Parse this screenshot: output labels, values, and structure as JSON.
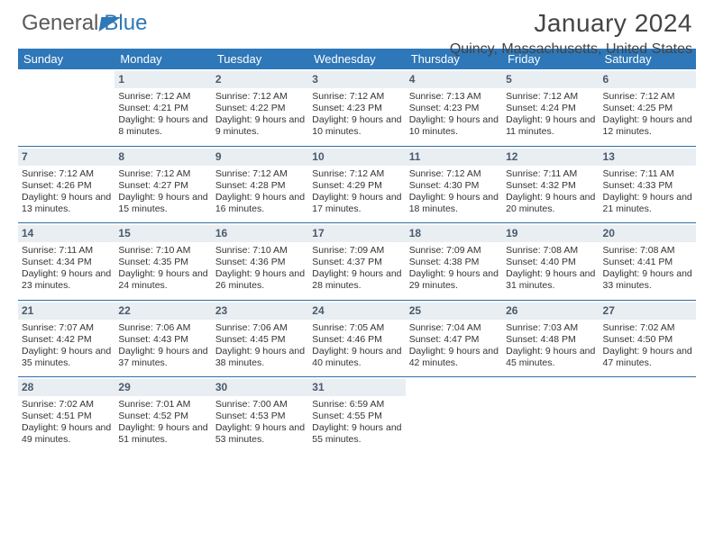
{
  "brand": {
    "part1": "General",
    "part2": "Blue"
  },
  "title": {
    "month": "January 2024",
    "location": "Quincy, Massachusetts, United States"
  },
  "dayNames": [
    "Sunday",
    "Monday",
    "Tuesday",
    "Wednesday",
    "Thursday",
    "Friday",
    "Saturday"
  ],
  "colors": {
    "headerBar": "#2e77b8",
    "rowRule": "#2e6ea8",
    "dayNumBg": "#e9eef3"
  },
  "weeks": [
    [
      null,
      {
        "n": "1",
        "sunrise": "7:12 AM",
        "sunset": "4:21 PM",
        "daylight": "9 hours and 8 minutes."
      },
      {
        "n": "2",
        "sunrise": "7:12 AM",
        "sunset": "4:22 PM",
        "daylight": "9 hours and 9 minutes."
      },
      {
        "n": "3",
        "sunrise": "7:12 AM",
        "sunset": "4:23 PM",
        "daylight": "9 hours and 10 minutes."
      },
      {
        "n": "4",
        "sunrise": "7:13 AM",
        "sunset": "4:23 PM",
        "daylight": "9 hours and 10 minutes."
      },
      {
        "n": "5",
        "sunrise": "7:12 AM",
        "sunset": "4:24 PM",
        "daylight": "9 hours and 11 minutes."
      },
      {
        "n": "6",
        "sunrise": "7:12 AM",
        "sunset": "4:25 PM",
        "daylight": "9 hours and 12 minutes."
      }
    ],
    [
      {
        "n": "7",
        "sunrise": "7:12 AM",
        "sunset": "4:26 PM",
        "daylight": "9 hours and 13 minutes."
      },
      {
        "n": "8",
        "sunrise": "7:12 AM",
        "sunset": "4:27 PM",
        "daylight": "9 hours and 15 minutes."
      },
      {
        "n": "9",
        "sunrise": "7:12 AM",
        "sunset": "4:28 PM",
        "daylight": "9 hours and 16 minutes."
      },
      {
        "n": "10",
        "sunrise": "7:12 AM",
        "sunset": "4:29 PM",
        "daylight": "9 hours and 17 minutes."
      },
      {
        "n": "11",
        "sunrise": "7:12 AM",
        "sunset": "4:30 PM",
        "daylight": "9 hours and 18 minutes."
      },
      {
        "n": "12",
        "sunrise": "7:11 AM",
        "sunset": "4:32 PM",
        "daylight": "9 hours and 20 minutes."
      },
      {
        "n": "13",
        "sunrise": "7:11 AM",
        "sunset": "4:33 PM",
        "daylight": "9 hours and 21 minutes."
      }
    ],
    [
      {
        "n": "14",
        "sunrise": "7:11 AM",
        "sunset": "4:34 PM",
        "daylight": "9 hours and 23 minutes."
      },
      {
        "n": "15",
        "sunrise": "7:10 AM",
        "sunset": "4:35 PM",
        "daylight": "9 hours and 24 minutes."
      },
      {
        "n": "16",
        "sunrise": "7:10 AM",
        "sunset": "4:36 PM",
        "daylight": "9 hours and 26 minutes."
      },
      {
        "n": "17",
        "sunrise": "7:09 AM",
        "sunset": "4:37 PM",
        "daylight": "9 hours and 28 minutes."
      },
      {
        "n": "18",
        "sunrise": "7:09 AM",
        "sunset": "4:38 PM",
        "daylight": "9 hours and 29 minutes."
      },
      {
        "n": "19",
        "sunrise": "7:08 AM",
        "sunset": "4:40 PM",
        "daylight": "9 hours and 31 minutes."
      },
      {
        "n": "20",
        "sunrise": "7:08 AM",
        "sunset": "4:41 PM",
        "daylight": "9 hours and 33 minutes."
      }
    ],
    [
      {
        "n": "21",
        "sunrise": "7:07 AM",
        "sunset": "4:42 PM",
        "daylight": "9 hours and 35 minutes."
      },
      {
        "n": "22",
        "sunrise": "7:06 AM",
        "sunset": "4:43 PM",
        "daylight": "9 hours and 37 minutes."
      },
      {
        "n": "23",
        "sunrise": "7:06 AM",
        "sunset": "4:45 PM",
        "daylight": "9 hours and 38 minutes."
      },
      {
        "n": "24",
        "sunrise": "7:05 AM",
        "sunset": "4:46 PM",
        "daylight": "9 hours and 40 minutes."
      },
      {
        "n": "25",
        "sunrise": "7:04 AM",
        "sunset": "4:47 PM",
        "daylight": "9 hours and 42 minutes."
      },
      {
        "n": "26",
        "sunrise": "7:03 AM",
        "sunset": "4:48 PM",
        "daylight": "9 hours and 45 minutes."
      },
      {
        "n": "27",
        "sunrise": "7:02 AM",
        "sunset": "4:50 PM",
        "daylight": "9 hours and 47 minutes."
      }
    ],
    [
      {
        "n": "28",
        "sunrise": "7:02 AM",
        "sunset": "4:51 PM",
        "daylight": "9 hours and 49 minutes."
      },
      {
        "n": "29",
        "sunrise": "7:01 AM",
        "sunset": "4:52 PM",
        "daylight": "9 hours and 51 minutes."
      },
      {
        "n": "30",
        "sunrise": "7:00 AM",
        "sunset": "4:53 PM",
        "daylight": "9 hours and 53 minutes."
      },
      {
        "n": "31",
        "sunrise": "6:59 AM",
        "sunset": "4:55 PM",
        "daylight": "9 hours and 55 minutes."
      },
      null,
      null,
      null
    ]
  ],
  "labels": {
    "sunrise": "Sunrise:",
    "sunset": "Sunset:",
    "daylight": "Daylight:"
  }
}
